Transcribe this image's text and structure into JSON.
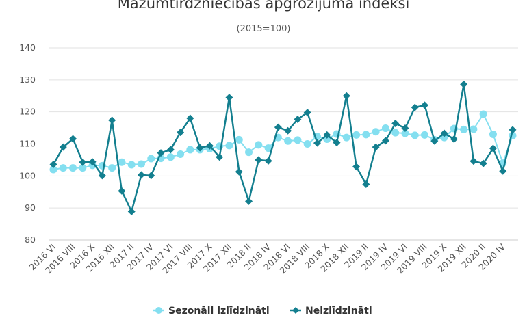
{
  "chart_data": {
    "type": "line",
    "title": "Mazumtirdzniecības apgrozījuma indeksi",
    "subtitle": "(2015=100)",
    "xlabel": "",
    "ylabel": "",
    "ylim": [
      80,
      140
    ],
    "yticks": [
      80,
      90,
      100,
      110,
      120,
      130,
      140
    ],
    "grid": true,
    "legend_position": "bottom",
    "categories": [
      "2016 VI",
      "2016 VII",
      "2016 VIII",
      "2016 IX",
      "2016 X",
      "2016 XI",
      "2016 XII",
      "2017 I",
      "2017 II",
      "2017 III",
      "2017 IV",
      "2017 V",
      "2017 VI",
      "2017 VII",
      "2017 VIII",
      "2017 IX",
      "2017 X",
      "2017 XI",
      "2017 XII",
      "2018 I",
      "2018 II",
      "2018 III",
      "2018 IV",
      "2018 V",
      "2018 VI",
      "2018 VII",
      "2018 VIII",
      "2018 IX",
      "2018 X",
      "2018 XI",
      "2018 XII",
      "2019 I",
      "2019 II",
      "2019 III",
      "2019 IV",
      "2019 V",
      "2019 VI",
      "2019 VII",
      "2019 VIII",
      "2019 IX",
      "2019 X",
      "2019 XI",
      "2019 XII",
      "2020 I",
      "2020 II",
      "2020 III",
      "2020 IV",
      "2020 V"
    ],
    "series": [
      {
        "name": "Sezonāli izlīdzināti",
        "color": "#84dff0",
        "marker": "circle",
        "values": [
          102.0,
          102.5,
          102.5,
          102.5,
          103.3,
          103.2,
          102.5,
          104.3,
          103.5,
          103.7,
          105.4,
          105.5,
          105.9,
          106.8,
          108.2,
          108.2,
          108.5,
          109.3,
          109.5,
          111.3,
          107.4,
          109.7,
          108.7,
          112.0,
          110.9,
          111.2,
          110.0,
          112.3,
          111.5,
          113.1,
          112.0,
          112.8,
          112.9,
          113.8,
          114.9,
          113.5,
          113.3,
          112.7,
          112.8,
          111.3,
          112.0,
          114.8,
          114.5,
          114.6,
          119.3,
          113.0,
          104.0,
          112.6
        ]
      },
      {
        "name": "Neizlīdzināti",
        "color": "#137f8f",
        "marker": "diamond",
        "values": [
          103.6,
          109.0,
          111.6,
          104.3,
          104.4,
          100.1,
          117.4,
          95.3,
          88.9,
          100.3,
          100.1,
          107.2,
          108.2,
          113.6,
          118.0,
          108.8,
          109.4,
          105.9,
          124.5,
          101.3,
          92.1,
          105.0,
          104.7,
          115.2,
          114.1,
          117.7,
          119.8,
          110.3,
          112.8,
          110.4,
          125.0,
          102.9,
          97.4,
          109.0,
          111.0,
          116.4,
          114.9,
          121.4,
          122.1,
          110.9,
          113.3,
          111.5,
          128.6,
          104.6,
          103.9,
          108.6,
          101.5,
          114.4
        ]
      }
    ]
  }
}
